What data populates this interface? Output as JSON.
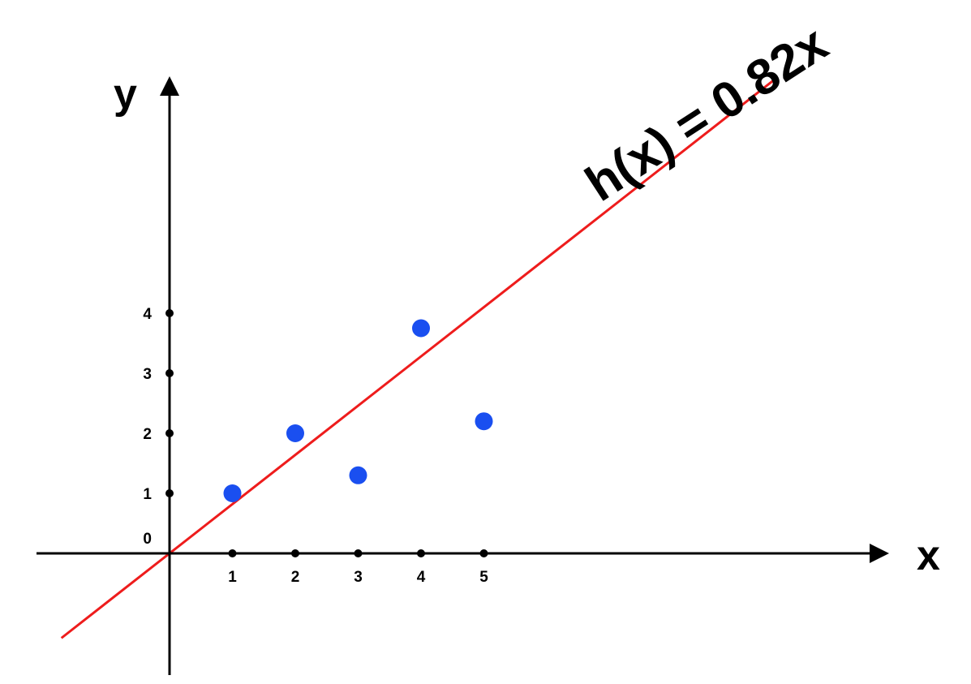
{
  "chart_data": {
    "type": "scatter",
    "title": "",
    "xlabel": "x",
    "ylabel": "y",
    "xlim": [
      -2.1,
      10.3
    ],
    "ylim": [
      -2.0,
      7.6
    ],
    "x_ticks": [
      "1",
      "2",
      "3",
      "4",
      "5"
    ],
    "y_ticks": [
      "0",
      "1",
      "2",
      "3",
      "4"
    ],
    "grid": false,
    "series": [
      {
        "points": [
          {
            "x": 1,
            "y": 1.0
          },
          {
            "x": 2,
            "y": 2.0
          },
          {
            "x": 3,
            "y": 1.3
          },
          {
            "x": 4,
            "y": 3.75
          },
          {
            "x": 5,
            "y": 2.2
          }
        ],
        "color": "#1a4ff0"
      }
    ],
    "fit_line": {
      "label": "h(x) = 0.82x",
      "slope": 0.82,
      "intercept": 0,
      "x_range": [
        -1.72,
        9.6
      ],
      "color": "#ee1c1c"
    }
  }
}
